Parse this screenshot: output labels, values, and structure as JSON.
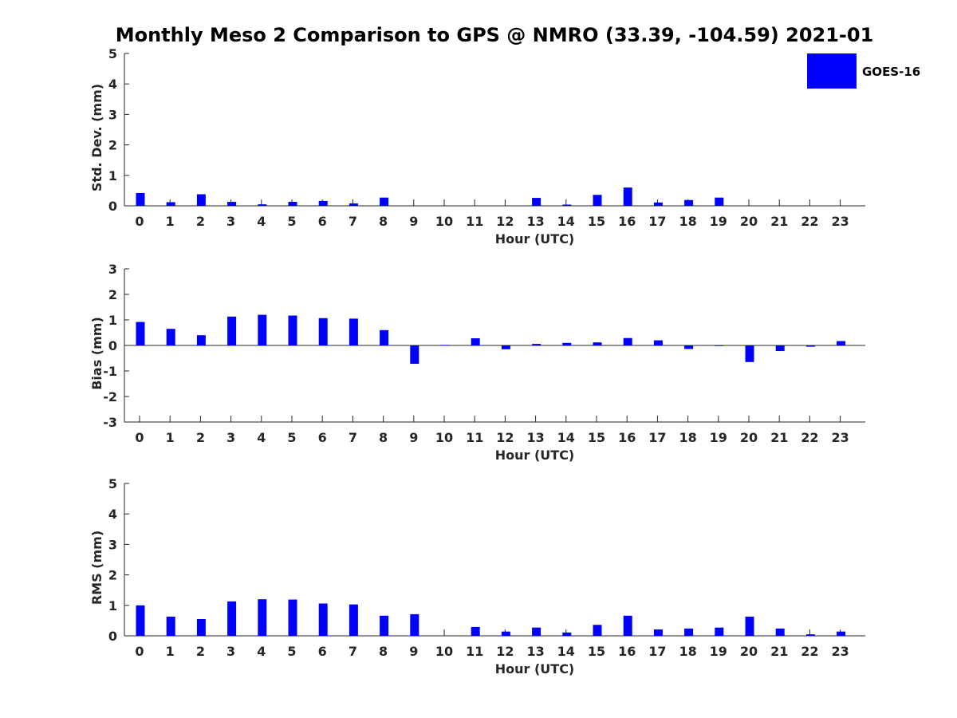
{
  "chart_data": {
    "title": "Monthly Meso 2 Comparison to GPS @ NMRO (33.39, -104.59) 2021-01",
    "legend": {
      "label": "GOES-16",
      "color": "#0000ff",
      "placement": "top-right"
    },
    "bar_color": "#0000ff",
    "panels": [
      {
        "type": "bar",
        "ylabel": "Std. Dev. (mm)",
        "xlabel": "Hour (UTC)",
        "ylim": [
          0,
          5
        ],
        "yticks": [
          0,
          1,
          2,
          3,
          4,
          5
        ],
        "categories": [
          "0",
          "1",
          "2",
          "3",
          "4",
          "5",
          "6",
          "7",
          "8",
          "9",
          "10",
          "11",
          "12",
          "13",
          "14",
          "15",
          "16",
          "17",
          "18",
          "19",
          "20",
          "21",
          "22",
          "23"
        ],
        "values": [
          0.42,
          0.12,
          0.38,
          0.13,
          0.05,
          0.13,
          0.16,
          0.08,
          0.27,
          null,
          null,
          null,
          null,
          0.26,
          0.04,
          0.36,
          0.6,
          0.11,
          0.19,
          0.27,
          null,
          null,
          null,
          null
        ]
      },
      {
        "type": "bar",
        "ylabel": "Bias (mm)",
        "xlabel": "Hour (UTC)",
        "ylim": [
          -3,
          3
        ],
        "yticks": [
          -3,
          -2,
          -1,
          0,
          1,
          2,
          3
        ],
        "categories": [
          "0",
          "1",
          "2",
          "3",
          "4",
          "5",
          "6",
          "7",
          "8",
          "9",
          "10",
          "11",
          "12",
          "13",
          "14",
          "15",
          "16",
          "17",
          "18",
          "19",
          "20",
          "21",
          "22",
          "23"
        ],
        "values": [
          0.92,
          0.65,
          0.4,
          1.13,
          1.2,
          1.17,
          1.07,
          1.05,
          0.6,
          -0.72,
          0.02,
          0.28,
          -0.15,
          0.06,
          0.1,
          0.12,
          0.29,
          0.2,
          -0.14,
          0.0,
          -0.65,
          -0.22,
          -0.05,
          0.17
        ]
      },
      {
        "type": "bar",
        "ylabel": "RMS (mm)",
        "xlabel": "Hour (UTC)",
        "ylim": [
          0,
          5
        ],
        "yticks": [
          0,
          1,
          2,
          3,
          4,
          5
        ],
        "categories": [
          "0",
          "1",
          "2",
          "3",
          "4",
          "5",
          "6",
          "7",
          "8",
          "9",
          "10",
          "11",
          "12",
          "13",
          "14",
          "15",
          "16",
          "17",
          "18",
          "19",
          "20",
          "21",
          "22",
          "23"
        ],
        "values": [
          1.0,
          0.63,
          0.55,
          1.13,
          1.2,
          1.19,
          1.06,
          1.03,
          0.66,
          0.71,
          null,
          0.29,
          0.14,
          0.27,
          0.11,
          0.36,
          0.66,
          0.21,
          0.24,
          0.27,
          0.63,
          0.24,
          0.05,
          0.14
        ]
      }
    ]
  }
}
